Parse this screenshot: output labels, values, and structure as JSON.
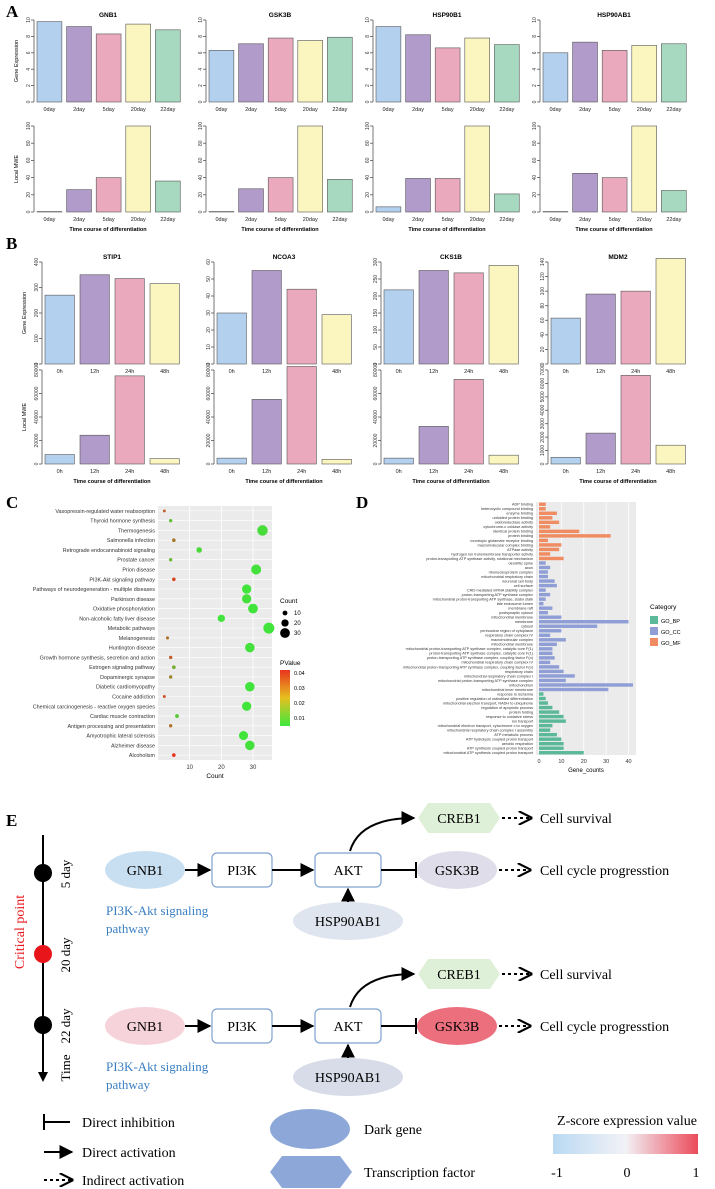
{
  "panel_labels": {
    "A": "A",
    "B": "B",
    "C": "C",
    "D": "D",
    "E": "E"
  },
  "colors": {
    "bar_blue": "#b3d0ef",
    "bar_purple": "#b19bcb",
    "bar_pink": "#eaa9bd",
    "bar_yellow": "#fbf6bf",
    "bar_green": "#a7d9c0",
    "pval_high": "#e8341e",
    "pval_low": "#3ce83c",
    "go_bp": "#5bb899",
    "go_cc": "#8f9fd6",
    "go_mf": "#ef8c62",
    "link_blue": "#3a7fc2",
    "critical_red": "#e8151b"
  },
  "chart_data": [
    {
      "id": "A-GE",
      "type": "bar",
      "ylabel": "Gene Expression",
      "categories": [
        "0day",
        "2day",
        "5day",
        "20day",
        "22day"
      ],
      "ylim": [
        0,
        10
      ],
      "yticks": [
        0,
        2,
        4,
        6,
        8,
        10
      ],
      "series": [
        {
          "name": "GNB1",
          "values": [
            9.8,
            9.2,
            8.3,
            9.5,
            8.8
          ]
        },
        {
          "name": "GSK3B",
          "values": [
            6.3,
            7.1,
            7.8,
            7.5,
            7.9
          ]
        },
        {
          "name": "HSP90B1",
          "values": [
            9.2,
            8.2,
            6.6,
            7.8,
            7.0
          ]
        },
        {
          "name": "HSP90AB1",
          "values": [
            6.0,
            7.3,
            6.3,
            6.9,
            7.1
          ]
        }
      ]
    },
    {
      "id": "A-LM",
      "type": "bar",
      "ylabel": "Local MWE",
      "xlabel": "Time course of differentiation",
      "categories": [
        "0day",
        "2day",
        "5day",
        "20day",
        "22day"
      ],
      "ylim": [
        0,
        100
      ],
      "yticks": [
        0,
        20,
        40,
        60,
        80,
        100
      ],
      "series": [
        {
          "name": "GNB1",
          "values": [
            0.5,
            26,
            40,
            100,
            36
          ]
        },
        {
          "name": "GSK3B",
          "values": [
            0.5,
            27,
            40,
            100,
            38
          ]
        },
        {
          "name": "HSP90B1",
          "values": [
            6,
            39,
            39,
            100,
            21
          ]
        },
        {
          "name": "HSP90AB1",
          "values": [
            0.5,
            45,
            40,
            100,
            25
          ]
        }
      ]
    },
    {
      "id": "B-GE",
      "type": "bar",
      "ylabel": "Gene Expression",
      "categories": [
        "0h",
        "12h",
        "24h",
        "48h"
      ],
      "series": [
        {
          "name": "STIP1",
          "values": [
            270,
            350,
            335,
            315
          ],
          "ylim": [
            0,
            400
          ],
          "yticks": [
            0,
            100,
            200,
            300,
            400
          ]
        },
        {
          "name": "NCOA3",
          "values": [
            30,
            55,
            44,
            29
          ],
          "ylim": [
            0,
            60
          ],
          "yticks": [
            0,
            10,
            20,
            30,
            40,
            50,
            60
          ]
        },
        {
          "name": "CKS1B",
          "values": [
            218,
            275,
            268,
            290
          ],
          "ylim": [
            0,
            300
          ],
          "yticks": [
            0,
            50,
            100,
            150,
            200,
            250,
            300
          ]
        },
        {
          "name": "MDM2",
          "values": [
            63,
            96,
            100,
            145
          ],
          "ylim": [
            0,
            140
          ],
          "yticks": [
            0,
            20,
            40,
            60,
            80,
            100,
            120,
            140
          ]
        }
      ]
    },
    {
      "id": "B-LM",
      "type": "bar",
      "ylabel": "Local MWE",
      "xlabel": "Time course of differentiation",
      "categories": [
        "0h",
        "12h",
        "24h",
        "48h"
      ],
      "series": [
        {
          "name": "STIP1",
          "values": [
            8000,
            24500,
            75000,
            4500
          ],
          "ylim": [
            0,
            80000
          ],
          "yticks": [
            0,
            20000,
            40000,
            60000,
            80000
          ]
        },
        {
          "name": "NCOA3",
          "values": [
            5000,
            55000,
            83000,
            4000
          ],
          "ylim": [
            0,
            80000
          ],
          "yticks": [
            0,
            20000,
            40000,
            60000,
            80000
          ]
        },
        {
          "name": "CKS1B",
          "values": [
            5000,
            32000,
            72000,
            7500
          ],
          "ylim": [
            0,
            80000
          ],
          "yticks": [
            0,
            20000,
            40000,
            60000,
            80000
          ]
        },
        {
          "name": "MDM2",
          "values": [
            500,
            2300,
            6600,
            1400
          ],
          "ylim": [
            0,
            7000
          ],
          "yticks": [
            0,
            1000,
            2000,
            3000,
            4000,
            5000,
            6000,
            7000
          ]
        }
      ]
    },
    {
      "id": "C",
      "type": "scatter",
      "xlabel": "Count",
      "xlim": [
        0,
        36
      ],
      "xticks": [
        10,
        20,
        30
      ],
      "size_legend": {
        "title": "Count",
        "values": [
          10,
          20,
          30
        ]
      },
      "color_legend": {
        "title": "PValue",
        "values": [
          0.04,
          0.03,
          0.02,
          0.01
        ]
      },
      "terms": [
        "Vasopressin-regulated water reabsorption",
        "Thyroid hormone synthesis",
        "Thermogenesis",
        "Salmonella infection",
        "Retrograde endocannabinoid signaling",
        "Prostate cancer",
        "Prion disease",
        "PI3K-Akt signaling pathway",
        "Pathways of neurodegeneration - multiple diseases",
        "Parkinson disease",
        "Oxidative phosphorylation",
        "Non-alcoholic fatty liver disease",
        "Metabolic pathways",
        "Melanogenesis",
        "Huntington disease",
        "Growth hormone synthesis, secretion and action",
        "Estrogen signaling pathway",
        "Dopaminergic synapse",
        "Diabetic cardiomyopathy",
        "Cocaine addiction",
        "Chemical carcinogenesis - reactive oxygen species",
        "Cardiac muscle contraction",
        "Antigen processing and presentation",
        "Amyotrophic lateral sclerosis",
        "Alzheimer disease",
        "Alcoholism"
      ],
      "counts": [
        2,
        4,
        33,
        5,
        13,
        4,
        31,
        5,
        28,
        28,
        30,
        20,
        35,
        3,
        29,
        4,
        5,
        4,
        29,
        2,
        28,
        6,
        4,
        27,
        29,
        5
      ],
      "pvalues": [
        0.035,
        0.01,
        0.003,
        0.028,
        0.004,
        0.012,
        0.002,
        0.04,
        0.001,
        0.002,
        0.001,
        0.001,
        0.001,
        0.03,
        0.002,
        0.035,
        0.015,
        0.025,
        0.001,
        0.038,
        0.001,
        0.008,
        0.03,
        0.001,
        0.002,
        0.045
      ]
    },
    {
      "id": "D",
      "type": "bar",
      "orientation": "horizontal",
      "xlabel": "Gene_counts",
      "xlim": [
        0,
        42
      ],
      "xticks": [
        0,
        10,
        20,
        30,
        40
      ],
      "legend": {
        "title": "Category",
        "items": [
          "GO_BP",
          "GO_CC",
          "GO_MF"
        ]
      },
      "terms": [
        "ADP binding",
        "heterocyclic compound binding",
        "enzyme binding",
        "unfolded protein binding",
        "oxidoreductase activity",
        "cytochrome-c oxidase activity",
        "identical protein binding",
        "protein binding",
        "ionotropic glutamate receptor binding",
        "macromolecular complex binding",
        "ATPase activity",
        "hydrogen ion transmembrane transporter activity",
        "proton-transporting ATP synthase activity, rotational mechanism",
        "dendritic spine",
        "axon",
        "ribonucleoprotein complex",
        "mitochondrial respiratory chain",
        "neuronal cell body",
        "cell surface",
        "CRD-mediated mRNA stability complex",
        "proton-transporting ATP synthase complex",
        "mitochondrial proton-transporting ATP synthase, stator stalk",
        "late endosome lumen",
        "membrane raft",
        "postsynaptic cytosol",
        "mitochondrial membrane",
        "membrane",
        "cytosol",
        "perinuclear region of cytoplasm",
        "respiratory chain complex IV",
        "macromolecular complex",
        "mitochondrial membrane",
        "mitochondrial proton-transporting ATP synthase complex, catalytic core F(1)",
        "proton-transporting ATP synthase complex, catalytic core F(1)",
        "proton-transporting ATP synthase complex, coupling factor F(o)",
        "mitochondrial respiratory chain complex IV",
        "mitochondrial proton-transporting ATP synthase complex, coupling factor F(o)",
        "respiratory chain",
        "mitochondrial respiratory chain complex I",
        "mitochondrial proton-transporting ATP synthase complex",
        "mitochondrion",
        "mitochondrial inner membrane",
        "response to ischemia",
        "positive regulation of osteoblast differentiation",
        "mitochondrial electron transport, NADH to ubiquinone",
        "regulation of apoptotic process",
        "protein folding",
        "response to oxidative stress",
        "ion transport",
        "mitochondrial electron transport, cytochrome c to oxygen",
        "mitochondrial respiratory chain complex I assembly",
        "ATP metabolic process",
        "ATP hydrolysis coupled proton transport",
        "aerobic respiration",
        "ATP synthesis coupled proton transport",
        "mitochondrial ATP synthesis coupled proton transport"
      ],
      "values": [
        3,
        3,
        8,
        6,
        9,
        5,
        18,
        32,
        4,
        10,
        9,
        5,
        11,
        3,
        5,
        4,
        4,
        7,
        8,
        3,
        5,
        3,
        2,
        6,
        4,
        10,
        40,
        26,
        10,
        5,
        12,
        8,
        6,
        6,
        7,
        5,
        9,
        11,
        16,
        12,
        42,
        31,
        2,
        3,
        4,
        6,
        9,
        11,
        12,
        6,
        5,
        8,
        10,
        11,
        11,
        20
      ],
      "categories": [
        "GO_MF",
        "GO_MF",
        "GO_MF",
        "GO_MF",
        "GO_MF",
        "GO_MF",
        "GO_MF",
        "GO_MF",
        "GO_MF",
        "GO_MF",
        "GO_MF",
        "GO_MF",
        "GO_MF",
        "GO_CC",
        "GO_CC",
        "GO_CC",
        "GO_CC",
        "GO_CC",
        "GO_CC",
        "GO_CC",
        "GO_CC",
        "GO_CC",
        "GO_CC",
        "GO_CC",
        "GO_CC",
        "GO_CC",
        "GO_CC",
        "GO_CC",
        "GO_CC",
        "GO_CC",
        "GO_CC",
        "GO_CC",
        "GO_CC",
        "GO_CC",
        "GO_CC",
        "GO_CC",
        "GO_CC",
        "GO_CC",
        "GO_CC",
        "GO_CC",
        "GO_CC",
        "GO_CC",
        "GO_BP",
        "GO_BP",
        "GO_BP",
        "GO_BP",
        "GO_BP",
        "GO_BP",
        "GO_BP",
        "GO_BP",
        "GO_BP",
        "GO_BP",
        "GO_BP",
        "GO_BP",
        "GO_BP",
        "GO_BP"
      ]
    }
  ],
  "diagram": {
    "timeline": {
      "day5": "5 day",
      "day20": "20 day",
      "day22": "22 day",
      "time": "Time",
      "critical": "Critical point"
    },
    "nodes": {
      "gnb1": "GNB1",
      "pi3k": "PI3K",
      "akt": "AKT",
      "creb1": "CREB1",
      "gsk3b": "GSK3B",
      "hsp": "HSP90AB1"
    },
    "outcomes": {
      "survival": "Cell survival",
      "cycle": "Cell cycle progresstion"
    },
    "pathway": "PI3K-Akt signaling pathway",
    "pathway_lines": [
      "PI3K-Akt signaling",
      "pathway"
    ],
    "legend": {
      "inhibition": "Direct inhibition",
      "activation": "Direct activation",
      "indirect": "Indirect activation",
      "dark_gene": "Dark gene",
      "tf": "Transcription factor",
      "zscore_title": "Z-score expression value",
      "zmin": "-1",
      "zmid": "0",
      "zmax": "1"
    }
  }
}
